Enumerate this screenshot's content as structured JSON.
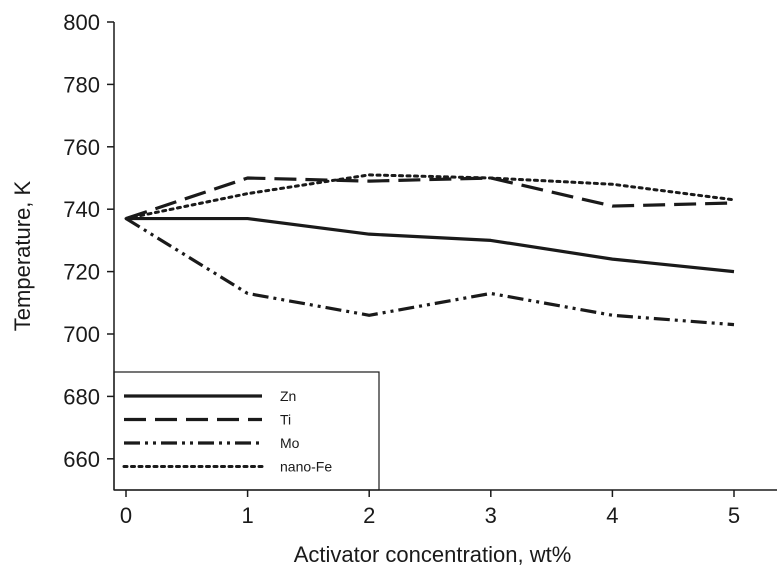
{
  "chart_data": {
    "type": "line",
    "xlabel": "Activator concentration, wt%",
    "ylabel": "Temperature, K",
    "x": [
      0,
      1,
      2,
      3,
      4,
      5
    ],
    "xlim": [
      -0.1,
      5.35
    ],
    "ylim": [
      650,
      800
    ],
    "yticks": [
      660,
      680,
      700,
      720,
      740,
      760,
      780,
      800
    ],
    "grid": false,
    "legend_position": "bottom-left",
    "series": [
      {
        "name": "Zn",
        "style": "solid",
        "color": "#1a1a1a",
        "values": [
          737,
          737,
          732,
          730,
          724,
          720
        ]
      },
      {
        "name": "Ti",
        "style": "dashed",
        "color": "#1a1a1a",
        "values": [
          737,
          750,
          749,
          750,
          741,
          742
        ]
      },
      {
        "name": "Mo",
        "style": "dash-dot-dot",
        "color": "#1a1a1a",
        "values": [
          737,
          713,
          706,
          713,
          706,
          703
        ]
      },
      {
        "name": "nano-Fe",
        "style": "dotted",
        "color": "#1a1a1a",
        "values": [
          737,
          745,
          751,
          750,
          748,
          743
        ]
      }
    ]
  }
}
